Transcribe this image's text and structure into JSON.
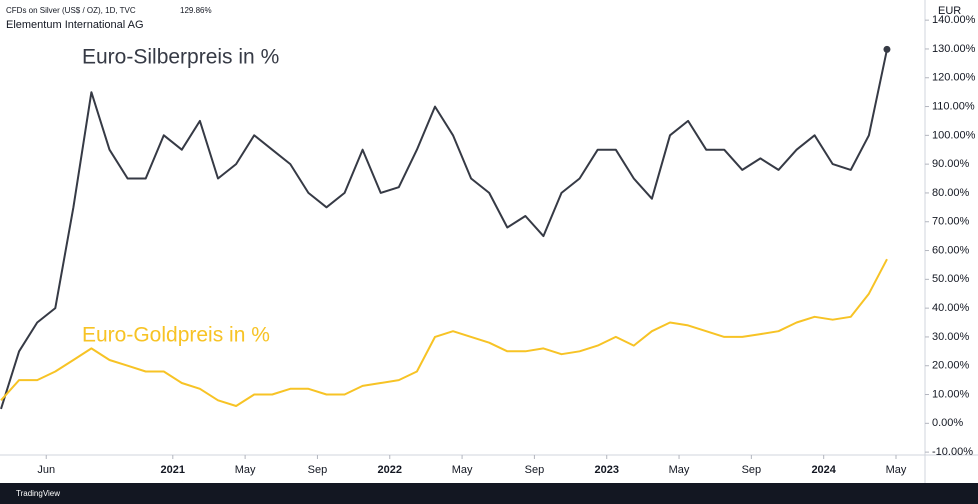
{
  "header": {
    "symbol": "CFDs on Silver (US$ / OZ), 1D, TVC",
    "last": "129.86%",
    "owner": "Elementum International AG",
    "currency": "EUR",
    "brand": "TradingView"
  },
  "chart_data": {
    "type": "line",
    "x": [
      "2020-03",
      "2020-04",
      "2020-05",
      "2020-06",
      "2020-07",
      "2020-08",
      "2020-09",
      "2020-10",
      "2020-11",
      "2020-12",
      "2021-01",
      "2021-02",
      "2021-03",
      "2021-04",
      "2021-05",
      "2021-06",
      "2021-07",
      "2021-08",
      "2021-09",
      "2021-10",
      "2021-11",
      "2021-12",
      "2022-01",
      "2022-02",
      "2022-03",
      "2022-04",
      "2022-05",
      "2022-06",
      "2022-07",
      "2022-08",
      "2022-09",
      "2022-10",
      "2022-11",
      "2022-12",
      "2023-01",
      "2023-02",
      "2023-03",
      "2023-04",
      "2023-05",
      "2023-06",
      "2023-07",
      "2023-08",
      "2023-09",
      "2023-10",
      "2023-11",
      "2023-12",
      "2024-01",
      "2024-02",
      "2024-03",
      "2024-04"
    ],
    "series": [
      {
        "name": "Euro-Silberpreis in %",
        "color": "#363a45",
        "values": [
          5,
          25,
          35,
          40,
          75,
          115,
          95,
          85,
          85,
          100,
          95,
          105,
          85,
          90,
          100,
          95,
          90,
          80,
          75,
          80,
          95,
          80,
          82,
          95,
          110,
          100,
          85,
          80,
          68,
          72,
          65,
          80,
          85,
          95,
          95,
          85,
          78,
          100,
          105,
          95,
          95,
          88,
          92,
          88,
          95,
          100,
          90,
          88,
          100,
          129.86
        ]
      },
      {
        "name": "Euro-Goldpreis in %",
        "color": "#f7c325",
        "values": [
          8,
          15,
          15,
          18,
          22,
          26,
          22,
          20,
          18,
          18,
          14,
          12,
          8,
          6,
          10,
          10,
          12,
          12,
          10,
          10,
          13,
          14,
          15,
          18,
          30,
          32,
          30,
          28,
          25,
          25,
          26,
          24,
          25,
          27,
          30,
          27,
          32,
          35,
          34,
          32,
          30,
          30,
          31,
          32,
          35,
          37,
          36,
          37,
          45,
          57
        ]
      }
    ],
    "xticks": [
      {
        "value": "2020-06",
        "label": "Jun"
      },
      {
        "value": "2021-01",
        "label": "2021"
      },
      {
        "value": "2021-05",
        "label": "May"
      },
      {
        "value": "2021-09",
        "label": "Sep"
      },
      {
        "value": "2022-01",
        "label": "2022"
      },
      {
        "value": "2022-05",
        "label": "May"
      },
      {
        "value": "2022-09",
        "label": "Sep"
      },
      {
        "value": "2023-01",
        "label": "2023"
      },
      {
        "value": "2023-05",
        "label": "May"
      },
      {
        "value": "2023-09",
        "label": "Sep"
      },
      {
        "value": "2024-01",
        "label": "2024"
      },
      {
        "value": "2024-05",
        "label": "May"
      }
    ],
    "ylim": [
      -11,
      147
    ],
    "yticks": [
      {
        "value": -10,
        "label": "-10.00%"
      },
      {
        "value": 0,
        "label": "0.00%"
      },
      {
        "value": 10,
        "label": "10.00%"
      },
      {
        "value": 20,
        "label": "20.00%"
      },
      {
        "value": 30,
        "label": "30.00%"
      },
      {
        "value": 40,
        "label": "40.00%"
      },
      {
        "value": 50,
        "label": "50.00%"
      },
      {
        "value": 60,
        "label": "60.00%"
      },
      {
        "value": 70,
        "label": "70.00%"
      },
      {
        "value": 80,
        "label": "80.00%"
      },
      {
        "value": 90,
        "label": "90.00%"
      },
      {
        "value": 100,
        "label": "100.00%"
      },
      {
        "value": 110,
        "label": "110.00%"
      },
      {
        "value": 120,
        "label": "120.00%"
      },
      {
        "value": 130,
        "label": "130.00%"
      },
      {
        "value": 140,
        "label": "140.00%"
      }
    ]
  }
}
